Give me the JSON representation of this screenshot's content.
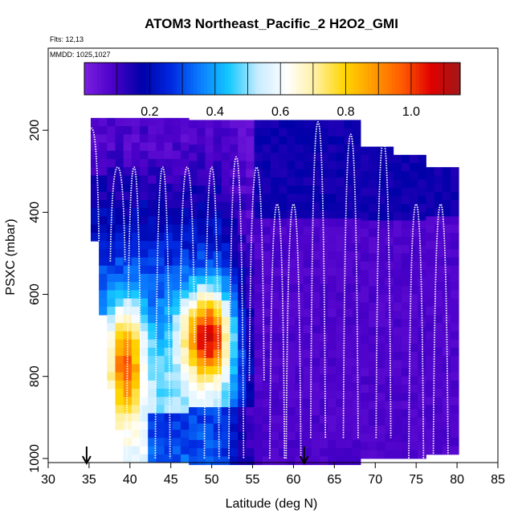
{
  "chart_data": {
    "type": "heatmap",
    "title": "ATOM3 Northeast_Pacific_2 H2O2_GMI",
    "notes": {
      "flights": "Flts: 12,13",
      "dates": "MMDD: 1025,1027"
    },
    "xlabel": "Latitude (deg N)",
    "ylabel": "PSXC (mbar)",
    "xlim": [
      30,
      85
    ],
    "ylim": [
      1010,
      0
    ],
    "x_ticks": [
      30,
      35,
      40,
      45,
      50,
      55,
      60,
      65,
      70,
      75,
      80,
      85
    ],
    "y_ticks": [
      200,
      400,
      600,
      800,
      1000
    ],
    "colorbar": {
      "min": 0,
      "max": 1.15,
      "ticks": [
        0.2,
        0.4,
        0.6,
        0.8,
        1.0
      ],
      "tick_labels": [
        "0.2",
        "0.4",
        "0.6",
        "0.8",
        "1.0"
      ],
      "colors": [
        "#7b1fe0",
        "#4a00c8",
        "#0000a8",
        "#0028e0",
        "#0a7cff",
        "#14c8ff",
        "#c8ecff",
        "#ffffff",
        "#fff0a0",
        "#ffd500",
        "#ff9a00",
        "#ff5a00",
        "#e00000",
        "#a01818"
      ]
    },
    "flight_track_color": "#ffffff",
    "markers": [
      {
        "type": "down-arrow",
        "lat": 34.7
      },
      {
        "type": "down-arrow",
        "lat": 61.3
      }
    ],
    "series": [
      {
        "lat_min": 35.2,
        "lat_max": 53.5,
        "vmin": 0.05,
        "vmax": 1.1
      },
      {
        "lat_min": 53.5,
        "lat_max": 80,
        "vmin": 0.01,
        "vmax": 0.2
      }
    ],
    "profiles": [
      {
        "lat": 35.3,
        "p_top": 195,
        "p_bottom": 470
      },
      {
        "lat": 38.5,
        "p_top": 290,
        "p_bottom": 520
      },
      {
        "lat": 40.5,
        "p_top": 290,
        "p_bottom": 1000
      },
      {
        "lat": 44,
        "p_top": 290,
        "p_bottom": 1000
      },
      {
        "lat": 47,
        "p_top": 290,
        "p_bottom": 720
      },
      {
        "lat": 50,
        "p_top": 290,
        "p_bottom": 1000
      },
      {
        "lat": 53,
        "p_top": 265,
        "p_bottom": 1000
      },
      {
        "lat": 55.5,
        "p_top": 290,
        "p_bottom": 810
      },
      {
        "lat": 58,
        "p_top": 380,
        "p_bottom": 1000
      },
      {
        "lat": 60,
        "p_top": 380,
        "p_bottom": 1000
      },
      {
        "lat": 63,
        "p_top": 180,
        "p_bottom": 950
      },
      {
        "lat": 67,
        "p_top": 210,
        "p_bottom": 950
      },
      {
        "lat": 71,
        "p_top": 225,
        "p_bottom": 950
      },
      {
        "lat": 75,
        "p_top": 380,
        "p_bottom": 1000
      },
      {
        "lat": 78,
        "p_top": 380,
        "p_bottom": 1000
      }
    ]
  }
}
